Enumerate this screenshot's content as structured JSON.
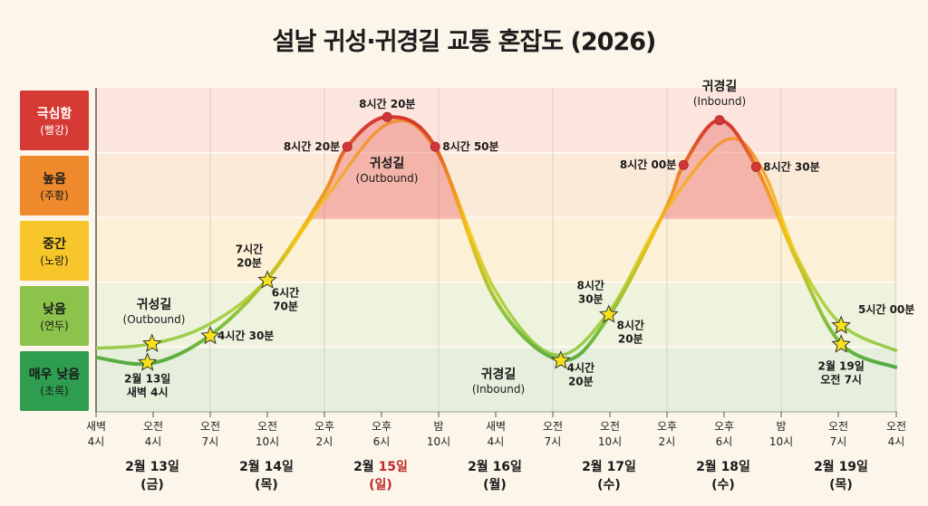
{
  "chart_data": {
    "type": "line",
    "title": "설날 귀성·귀경길 교통 혼잡도 (2026)",
    "y_levels": [
      {
        "label": "매우 낮음",
        "color_name": "(초록)",
        "color": "#2e9d4f",
        "band": "#e5efdc"
      },
      {
        "label": "낮음",
        "color_name": "(연두)",
        "color": "#8cc34a",
        "band": "#eef3dd"
      },
      {
        "label": "중간",
        "color_name": "(노랑)",
        "color": "#f7c62a",
        "band": "#fcf0d6"
      },
      {
        "label": "높음",
        "color_name": "(주황)",
        "color": "#ef8a2c",
        "band": "#fcead9"
      },
      {
        "label": "극심함",
        "color_name": "(빨강)",
        "color": "#d63a35",
        "band": "#fbe5dd"
      }
    ],
    "x_ticks": [
      [
        "새벽",
        "4시"
      ],
      [
        "오전",
        "4시"
      ],
      [
        "오전",
        "7시"
      ],
      [
        "오전",
        "10시"
      ],
      [
        "오후",
        "2시"
      ],
      [
        "오후",
        "6시"
      ],
      [
        "밤",
        "10시"
      ],
      [
        "새벽",
        "4시"
      ],
      [
        "오전",
        "7시"
      ],
      [
        "오전",
        "10시"
      ],
      [
        "오후",
        "2시"
      ],
      [
        "오후",
        "6시"
      ],
      [
        "밤",
        "10시"
      ],
      [
        "오전",
        "7시"
      ],
      [
        "오전",
        "4시"
      ]
    ],
    "dates": [
      {
        "date": "2월 ",
        "day": "13일",
        "weekday": "(금)",
        "holiday": false
      },
      {
        "date": "2월 ",
        "day": "14일",
        "weekday": "(목)",
        "holiday": false
      },
      {
        "date": "2월 ",
        "day": "15일",
        "weekday": "(일)",
        "holiday": true
      },
      {
        "date": "2월 ",
        "day": "16일",
        "weekday": "(월)",
        "holiday": false
      },
      {
        "date": "2월 ",
        "day": "17일",
        "weekday": "(수)",
        "holiday": false
      },
      {
        "date": "2월 ",
        "day": "18일",
        "weekday": "(수)",
        "holiday": false
      },
      {
        "date": "2월 ",
        "day": "19일",
        "weekday": "(목)",
        "holiday": false
      }
    ],
    "series": [
      {
        "points": [
          [
            0,
            0.84
          ],
          [
            0.98,
            0.75
          ],
          [
            1.98,
            1.17
          ],
          [
            2.98,
            2.03
          ],
          [
            3.98,
            3.35
          ],
          [
            4.4,
            4.09
          ],
          [
            5.1,
            4.55
          ],
          [
            5.94,
            4.09
          ],
          [
            6.98,
            1.75
          ],
          [
            8.14,
            0.8
          ],
          [
            8.98,
            1.47
          ],
          [
            9.98,
            3.14
          ],
          [
            10.29,
            3.81
          ],
          [
            10.92,
            4.5
          ],
          [
            11.56,
            3.78
          ],
          [
            12.29,
            2.3
          ],
          [
            13.05,
            1.05
          ],
          [
            14.03,
            0.68
          ]
        ]
      },
      {
        "points": [
          [
            0,
            0.98
          ],
          [
            0.98,
            1.05
          ],
          [
            1.98,
            1.35
          ],
          [
            2.98,
            2.03
          ],
          [
            3.98,
            3.25
          ],
          [
            5.1,
            4.44
          ],
          [
            5.94,
            4.05
          ],
          [
            6.98,
            1.89
          ],
          [
            8.03,
            0.88
          ],
          [
            8.98,
            1.54
          ],
          [
            9.98,
            3.11
          ],
          [
            11.02,
            4.19
          ],
          [
            11.65,
            3.77
          ],
          [
            12.29,
            2.37
          ],
          [
            13.05,
            1.35
          ],
          [
            14.03,
            0.94
          ]
        ]
      }
    ],
    "series_labels": [
      {
        "name": "귀성길",
        "sub": "(Outbound)"
      },
      {
        "name": "귀성길",
        "sub": "(Outbound)"
      },
      {
        "name": "귀경길",
        "sub": "(Inbound)"
      },
      {
        "name": "귀경길",
        "sub": "(Inbound)"
      }
    ],
    "annotations": [
      {
        "marker": "star",
        "x": 0.98,
        "y": 1.05,
        "lines": []
      },
      {
        "marker": "star",
        "x": 0.9,
        "y": 0.76,
        "lines": [
          "2월 13일",
          "새벽 4시"
        ]
      },
      {
        "marker": "star",
        "x": 2.0,
        "y": 1.17,
        "lines": [
          "4시간 30분"
        ]
      },
      {
        "marker": "star",
        "x": 3.0,
        "y": 2.03,
        "lines": [
          "7시간",
          "20분"
        ]
      },
      {
        "marker": "none",
        "x": 3.0,
        "y": 2.03,
        "lines": [
          "6시간",
          "70분"
        ]
      },
      {
        "marker": "dot",
        "x": 4.4,
        "y": 4.09,
        "lines": [
          "8시간 20분"
        ]
      },
      {
        "marker": "dot",
        "x": 5.1,
        "y": 4.55,
        "lines": [
          "8시간 20분"
        ]
      },
      {
        "marker": "dot",
        "x": 5.94,
        "y": 4.09,
        "lines": [
          "8시간 50분"
        ]
      },
      {
        "marker": "star",
        "x": 8.14,
        "y": 0.79,
        "lines": [
          "4시간",
          "20분"
        ]
      },
      {
        "marker": "star",
        "x": 8.98,
        "y": 1.5,
        "lines": [
          "8시간",
          "30분"
        ]
      },
      {
        "marker": "none",
        "x": 8.98,
        "y": 1.5,
        "lines": [
          "8시간",
          "20분"
        ]
      },
      {
        "marker": "dot",
        "x": 10.29,
        "y": 3.81,
        "lines": [
          "8시간 00분"
        ]
      },
      {
        "marker": "dot",
        "x": 10.92,
        "y": 4.5,
        "lines": []
      },
      {
        "marker": "dot",
        "x": 11.56,
        "y": 3.78,
        "lines": [
          "8시간 30분"
        ]
      },
      {
        "marker": "star",
        "x": 13.05,
        "y": 1.33,
        "lines": [
          "5시간 00분"
        ]
      },
      {
        "marker": "star",
        "x": 13.05,
        "y": 1.04,
        "lines": [
          "2월 19일",
          "오전 7시"
        ]
      }
    ]
  }
}
